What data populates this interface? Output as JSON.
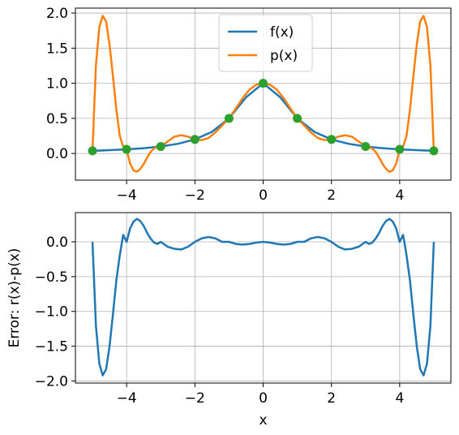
{
  "chart_data": [
    {
      "type": "line",
      "title": "",
      "xlabel": "",
      "ylabel": "",
      "xlim": [
        -5.5,
        5.5
      ],
      "ylim": [
        -0.38,
        2.07
      ],
      "xticks": [
        -4,
        -2,
        0,
        2,
        4
      ],
      "xtick_labels": [
        "−4",
        "−2",
        "0",
        "2",
        "4"
      ],
      "yticks": [
        0.0,
        0.5,
        1.0,
        1.5,
        2.0
      ],
      "ytick_labels": [
        "0.0",
        "0.5",
        "1.0",
        "1.5",
        "2.0"
      ],
      "grid": true,
      "legend": "top-center",
      "series": [
        {
          "name": "f(x)",
          "color": "#1f77b4",
          "kind": "line",
          "x": [
            -5.0,
            -4.5,
            -4.0,
            -3.5,
            -3.0,
            -2.5,
            -2.0,
            -1.5,
            -1.0,
            -0.5,
            0.0,
            0.5,
            1.0,
            1.5,
            2.0,
            2.5,
            3.0,
            3.5,
            4.0,
            4.5,
            5.0
          ],
          "y": [
            0.038,
            0.047,
            0.059,
            0.075,
            0.1,
            0.138,
            0.2,
            0.308,
            0.5,
            0.8,
            1.0,
            0.8,
            0.5,
            0.308,
            0.2,
            0.138,
            0.1,
            0.075,
            0.059,
            0.047,
            0.038
          ]
        },
        {
          "name": "p(x)",
          "color": "#ff7f0e",
          "kind": "line",
          "x": [
            -5.0,
            -4.9,
            -4.8,
            -4.7,
            -4.6,
            -4.5,
            -4.4,
            -4.3,
            -4.2,
            -4.1,
            -4.0,
            -3.9,
            -3.8,
            -3.7,
            -3.6,
            -3.5,
            -3.4,
            -3.3,
            -3.2,
            -3.1,
            -3.0,
            -2.8,
            -2.6,
            -2.4,
            -2.2,
            -2.0,
            -1.8,
            -1.6,
            -1.4,
            -1.2,
            -1.0,
            -0.8,
            -0.6,
            -0.4,
            -0.2,
            0.0,
            0.2,
            0.4,
            0.6,
            0.8,
            1.0,
            1.2,
            1.4,
            1.6,
            1.8,
            2.0,
            2.2,
            2.4,
            2.6,
            2.8,
            3.0,
            3.1,
            3.2,
            3.3,
            3.4,
            3.5,
            3.6,
            3.7,
            3.8,
            3.9,
            4.0,
            4.1,
            4.2,
            4.3,
            4.4,
            4.5,
            4.6,
            4.7,
            4.8,
            4.9,
            5.0
          ],
          "y": [
            0.038,
            1.25,
            1.8,
            1.96,
            1.88,
            1.55,
            1.1,
            0.62,
            0.25,
            0.1,
            0.059,
            -0.14,
            -0.24,
            -0.26,
            -0.22,
            -0.15,
            -0.06,
            0.02,
            0.07,
            0.09,
            0.1,
            0.17,
            0.24,
            0.26,
            0.24,
            0.2,
            0.19,
            0.22,
            0.3,
            0.4,
            0.5,
            0.64,
            0.79,
            0.91,
            0.98,
            1.0,
            0.98,
            0.91,
            0.79,
            0.64,
            0.5,
            0.4,
            0.3,
            0.22,
            0.19,
            0.2,
            0.24,
            0.26,
            0.24,
            0.17,
            0.1,
            0.09,
            0.07,
            0.02,
            -0.06,
            -0.15,
            -0.22,
            -0.26,
            -0.24,
            -0.14,
            0.059,
            0.1,
            0.25,
            0.62,
            1.1,
            1.55,
            1.88,
            1.96,
            1.8,
            1.25,
            0.038
          ]
        },
        {
          "name": "",
          "color": "#2ca02c",
          "kind": "points",
          "x": [
            -5,
            -4,
            -3,
            -2,
            -1,
            0,
            1,
            2,
            3,
            4,
            5
          ],
          "y": [
            0.038,
            0.059,
            0.1,
            0.2,
            0.5,
            1.0,
            0.5,
            0.2,
            0.1,
            0.059,
            0.038
          ]
        }
      ]
    },
    {
      "type": "line",
      "title": "",
      "xlabel": "x",
      "ylabel": "Error: r(x)-p(x)",
      "xlim": [
        -5.5,
        5.5
      ],
      "ylim": [
        -2.03,
        0.42
      ],
      "xticks": [
        -4,
        -2,
        0,
        2,
        4
      ],
      "xtick_labels": [
        "−4",
        "−2",
        "0",
        "2",
        "4"
      ],
      "yticks": [
        0.0,
        -0.5,
        -1.0,
        -1.5,
        -2.0
      ],
      "ytick_labels": [
        "0.0",
        "−0.5",
        "−1.0",
        "−1.5",
        "−2.0"
      ],
      "grid": true,
      "series": [
        {
          "name": "",
          "color": "#1f77b4",
          "kind": "line",
          "x": [
            -5.0,
            -4.9,
            -4.8,
            -4.7,
            -4.6,
            -4.5,
            -4.4,
            -4.3,
            -4.2,
            -4.1,
            -4.0,
            -3.9,
            -3.8,
            -3.7,
            -3.6,
            -3.5,
            -3.4,
            -3.3,
            -3.2,
            -3.1,
            -3.0,
            -2.8,
            -2.6,
            -2.4,
            -2.2,
            -2.0,
            -1.8,
            -1.6,
            -1.4,
            -1.2,
            -1.0,
            -0.8,
            -0.6,
            -0.4,
            -0.2,
            0.0,
            0.2,
            0.4,
            0.6,
            0.8,
            1.0,
            1.2,
            1.4,
            1.6,
            1.8,
            2.0,
            2.2,
            2.4,
            2.6,
            2.8,
            3.0,
            3.1,
            3.2,
            3.3,
            3.4,
            3.5,
            3.6,
            3.7,
            3.8,
            3.9,
            4.0,
            4.1,
            4.2,
            4.3,
            4.4,
            4.5,
            4.6,
            4.7,
            4.8,
            4.9,
            5.0
          ],
          "y": [
            0.0,
            -1.2,
            -1.75,
            -1.92,
            -1.83,
            -1.5,
            -1.04,
            -0.55,
            -0.19,
            0.1,
            0.0,
            0.19,
            0.29,
            0.33,
            0.3,
            0.23,
            0.13,
            0.05,
            -0.01,
            -0.03,
            0.0,
            -0.07,
            -0.1,
            -0.11,
            -0.07,
            0.0,
            0.05,
            0.07,
            0.05,
            0.0,
            0.0,
            -0.03,
            -0.04,
            -0.03,
            -0.01,
            0.0,
            -0.01,
            -0.03,
            -0.04,
            -0.03,
            0.0,
            0.0,
            0.05,
            0.07,
            0.05,
            0.0,
            -0.07,
            -0.11,
            -0.1,
            -0.07,
            0.0,
            -0.03,
            -0.01,
            0.05,
            0.13,
            0.23,
            0.3,
            0.33,
            0.29,
            0.19,
            0.0,
            0.1,
            -0.19,
            -0.55,
            -1.04,
            -1.5,
            -1.83,
            -1.92,
            -1.75,
            -1.2,
            0.0
          ]
        }
      ]
    }
  ]
}
